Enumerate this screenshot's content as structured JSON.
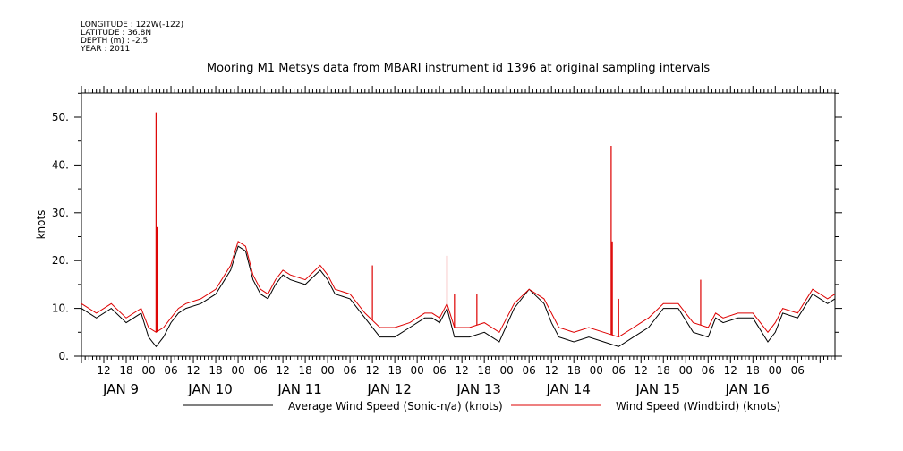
{
  "header": {
    "info_lines": [
      "LONGITUDE : 122W(-122)",
      "LATITUDE : 36.8N",
      "DEPTH (m) : -2.5",
      "YEAR : 2011"
    ]
  },
  "chart_data": {
    "type": "line",
    "title": "Mooring M1 Metsys data from MBARI instrument id 1396 at original sampling intervals",
    "ylabel": "knots",
    "xlabel": "",
    "ylim": [
      0,
      55
    ],
    "y_ticks": [
      "0.",
      "10.",
      "20.",
      "30.",
      "40.",
      "50."
    ],
    "x_range_hours": [
      0,
      202
    ],
    "x_hour_ticks": [
      "12",
      "18",
      "00",
      "06",
      "12",
      "18",
      "00",
      "06",
      "12",
      "18",
      "00",
      "06",
      "12",
      "18",
      "00",
      "06",
      "12",
      "18",
      "00",
      "06",
      "12",
      "18",
      "00",
      "06",
      "12",
      "18",
      "00",
      "06",
      "12",
      "18",
      "00",
      "06"
    ],
    "day_labels": [
      "JAN  9",
      "JAN 10",
      "JAN 11",
      "JAN 12",
      "JAN 13",
      "JAN 14",
      "JAN 15",
      "JAN 16"
    ],
    "grid": false,
    "legend_position": "bottom",
    "series": [
      {
        "name": "Average Wind Speed (Sonic-n/a) (knots)",
        "color": "#000000",
        "x": [
          0,
          4,
          8,
          12,
          16,
          18,
          20,
          22,
          24,
          26,
          28,
          32,
          36,
          40,
          42,
          44,
          46,
          48,
          50,
          52,
          54,
          56,
          60,
          64,
          66,
          68,
          72,
          76,
          80,
          84,
          88,
          92,
          94,
          96,
          98,
          100,
          104,
          108,
          112,
          116,
          120,
          124,
          126,
          128,
          132,
          136,
          140,
          144,
          148,
          150,
          152,
          156,
          160,
          164,
          168,
          170,
          172,
          176,
          180,
          184,
          186,
          188,
          192,
          196,
          200,
          202
        ],
        "values": [
          10,
          8,
          10,
          7,
          9,
          4,
          2,
          4,
          7,
          9,
          10,
          11,
          13,
          18,
          23,
          22,
          16,
          13,
          12,
          15,
          17,
          16,
          15,
          18,
          16,
          13,
          12,
          8,
          4,
          4,
          6,
          8,
          8,
          7,
          10,
          4,
          4,
          5,
          3,
          10,
          14,
          11,
          7,
          4,
          3,
          4,
          3,
          2,
          4,
          5,
          6,
          10,
          10,
          5,
          4,
          8,
          7,
          8,
          8,
          3,
          5,
          9,
          8,
          13,
          11,
          12
        ]
      },
      {
        "name": "Wind Speed (Windbird) (knots)",
        "color": "#dd0000",
        "x": [
          0,
          4,
          8,
          12,
          16,
          18,
          20,
          22,
          24,
          26,
          28,
          32,
          36,
          40,
          42,
          44,
          46,
          48,
          50,
          52,
          54,
          56,
          60,
          64,
          66,
          68,
          72,
          76,
          80,
          84,
          88,
          92,
          94,
          96,
          98,
          100,
          104,
          108,
          112,
          116,
          120,
          124,
          126,
          128,
          132,
          136,
          140,
          144,
          148,
          150,
          152,
          156,
          160,
          164,
          168,
          170,
          172,
          176,
          180,
          184,
          186,
          188,
          192,
          196,
          200,
          202
        ],
        "values": [
          11,
          9,
          11,
          8,
          10,
          6,
          5,
          6,
          8,
          10,
          11,
          12,
          14,
          19,
          24,
          23,
          17,
          14,
          13,
          16,
          18,
          17,
          16,
          19,
          17,
          14,
          13,
          9,
          6,
          6,
          7,
          9,
          9,
          8,
          11,
          6,
          6,
          7,
          5,
          11,
          14,
          12,
          9,
          6,
          5,
          6,
          5,
          4,
          6,
          7,
          8,
          11,
          11,
          7,
          6,
          9,
          8,
          9,
          9,
          5,
          7,
          10,
          9,
          14,
          12,
          13
        ],
        "spikes": [
          {
            "x": 20,
            "value": 51
          },
          {
            "x": 20.3,
            "value": 27
          },
          {
            "x": 78,
            "value": 19
          },
          {
            "x": 98,
            "value": 21
          },
          {
            "x": 100,
            "value": 13
          },
          {
            "x": 106,
            "value": 13
          },
          {
            "x": 142,
            "value": 44
          },
          {
            "x": 142.3,
            "value": 24
          },
          {
            "x": 144,
            "value": 12
          },
          {
            "x": 166,
            "value": 16
          }
        ]
      }
    ]
  }
}
